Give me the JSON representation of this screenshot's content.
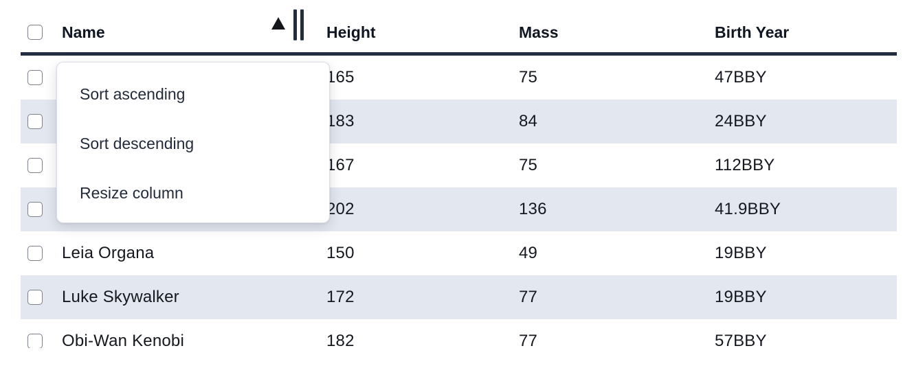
{
  "table": {
    "columns": [
      {
        "id": "name",
        "label": "Name"
      },
      {
        "id": "height",
        "label": "Height"
      },
      {
        "id": "mass",
        "label": "Mass"
      },
      {
        "id": "birth_year",
        "label": "Birth Year"
      }
    ],
    "sort": {
      "column": "Name",
      "direction": "ascending"
    },
    "rows": [
      {
        "name": "",
        "height": "165",
        "mass": "75",
        "birth_year": "47BBY",
        "selected": false
      },
      {
        "name": "",
        "height": "183",
        "mass": "84",
        "birth_year": "24BBY",
        "selected": false
      },
      {
        "name": "",
        "height": "167",
        "mass": "75",
        "birth_year": "112BBY",
        "selected": false
      },
      {
        "name": "",
        "height": "202",
        "mass": "136",
        "birth_year": "41.9BBY",
        "selected": false
      },
      {
        "name": "Leia Organa",
        "height": "150",
        "mass": "49",
        "birth_year": "19BBY",
        "selected": false
      },
      {
        "name": "Luke Skywalker",
        "height": "172",
        "mass": "77",
        "birth_year": "19BBY",
        "selected": false
      },
      {
        "name": "Obi-Wan Kenobi",
        "height": "182",
        "mass": "77",
        "birth_year": "57BBY",
        "selected": false
      }
    ],
    "select_all_checked": false
  },
  "context_menu": {
    "target_column": "Name",
    "items": [
      {
        "label": "Sort ascending"
      },
      {
        "label": "Sort descending"
      },
      {
        "label": "Resize column"
      }
    ]
  },
  "icons": {
    "sort_ascending": "up-triangle",
    "resize_handle": "double-vertical-bars"
  },
  "colors": {
    "header_border": "#222d3f",
    "row_stripe": "#e3e7ef",
    "text": "#15181e",
    "menu_text": "#232b3a",
    "menu_border": "#d9dee6",
    "checkbox_border": "#7a8089"
  }
}
